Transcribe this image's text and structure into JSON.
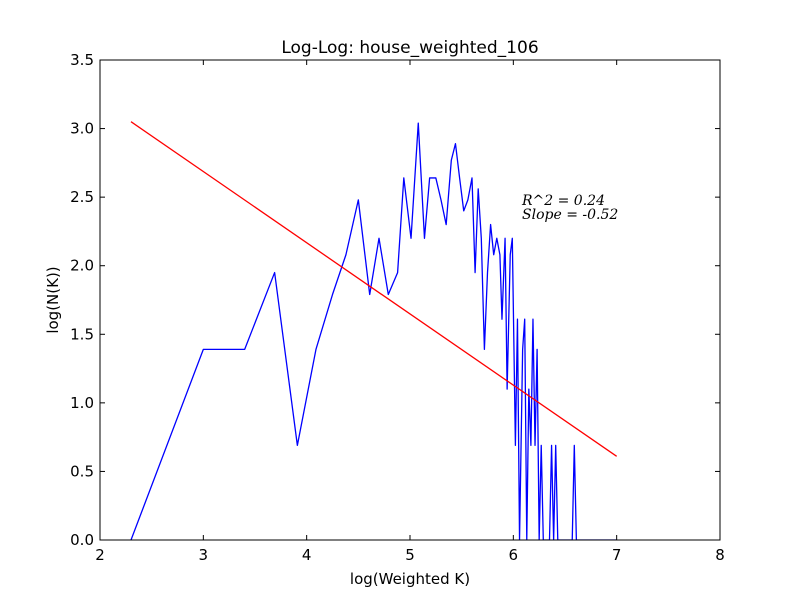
{
  "chart_data": {
    "type": "line",
    "title": "Log-Log: house_weighted_106",
    "xlabel": "log(Weighted K)",
    "ylabel": "log(N(K))",
    "xlim": [
      2,
      8
    ],
    "ylim": [
      0,
      3.5
    ],
    "xticks": [
      "2",
      "3",
      "4",
      "5",
      "6",
      "7",
      "8"
    ],
    "yticks": [
      "0.0",
      "0.5",
      "1.0",
      "1.5",
      "2.0",
      "2.5",
      "3.0",
      "3.5"
    ],
    "grid": false,
    "annotations": {
      "r2": "R^2 = 0.24",
      "slope": "Slope = -0.52"
    },
    "series": [
      {
        "color": "#0000ff",
        "x": [
          2.3,
          3.0,
          3.4,
          3.69,
          3.91,
          4.09,
          4.25,
          4.38,
          4.5,
          4.61,
          4.7,
          4.79,
          4.88,
          4.94,
          5.01,
          5.08,
          5.14,
          5.19,
          5.25,
          5.3,
          5.35,
          5.4,
          5.44,
          5.48,
          5.52,
          5.56,
          5.6,
          5.63,
          5.66,
          5.69,
          5.72,
          5.75,
          5.78,
          5.81,
          5.84,
          5.87,
          5.89,
          5.92,
          5.94,
          5.97,
          5.99,
          6.02,
          6.04,
          6.06,
          6.09,
          6.11,
          6.13,
          6.15,
          6.17,
          6.19,
          6.21,
          6.23,
          6.25,
          6.27,
          6.29,
          6.31,
          6.33,
          6.35,
          6.37,
          6.39,
          6.41,
          6.43,
          6.45,
          6.47,
          6.49,
          6.51,
          6.53,
          6.55,
          6.57,
          6.59,
          6.61,
          6.63,
          6.65,
          6.67,
          6.69,
          6.71,
          7.0
        ],
        "y": [
          0.0,
          1.39,
          1.39,
          1.95,
          0.69,
          1.39,
          1.79,
          2.08,
          2.48,
          1.79,
          2.2,
          1.79,
          1.95,
          2.64,
          2.2,
          3.04,
          2.2,
          2.64,
          2.64,
          2.48,
          2.3,
          2.77,
          2.89,
          2.64,
          2.4,
          2.48,
          2.64,
          1.95,
          2.56,
          2.2,
          1.39,
          1.95,
          2.3,
          2.08,
          2.2,
          2.08,
          1.61,
          2.2,
          1.1,
          2.08,
          2.2,
          0.69,
          1.61,
          0.0,
          1.39,
          1.61,
          0.0,
          1.1,
          0.69,
          1.61,
          0.69,
          1.39,
          0.0,
          0.69,
          0.0,
          0.0,
          0.0,
          0.0,
          0.69,
          0.0,
          0.69,
          0.0,
          0.0,
          0.0,
          0.0,
          0.0,
          0.0,
          0.0,
          0.0,
          0.69,
          0.0,
          0.0,
          0.0,
          0.0,
          0.0,
          0.0,
          0.0
        ]
      },
      {
        "color": "#ff0000",
        "x": [
          2.3,
          7.0
        ],
        "y": [
          3.05,
          0.61
        ]
      }
    ]
  }
}
